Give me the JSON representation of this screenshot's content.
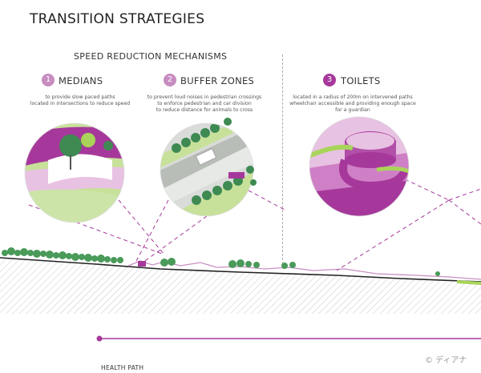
{
  "title": "TRANSITION STRATEGIES",
  "subtitle": "SPEED REDUCTION MECHANISMS",
  "strategies": [
    {
      "number": "1",
      "name": "MEDIANS",
      "description": [
        "to provide slow paced paths",
        "located in intersections to reduce speed"
      ]
    },
    {
      "number": "2",
      "name": "BUFFER ZONES",
      "description": [
        "to prevent loud noises in pedestrian crossings",
        "to enforce pedestrian and car division",
        "to reduce distance for animals to cross"
      ]
    },
    {
      "number": "3",
      "name": "TOILETS",
      "description": [
        "located in a radius of 200m on intervened paths",
        "wheelchair accessible and providing enough space",
        "for a guardian"
      ]
    }
  ],
  "path_label": "HEALTH PATH",
  "copyright": "© ディアナ",
  "colors": {
    "magenta": "#a6389b",
    "light_magenta": "#cf7fc6",
    "pale_magenta": "#e8c2e2",
    "green": "#3e8a52",
    "lime": "#a9d45a"
  }
}
